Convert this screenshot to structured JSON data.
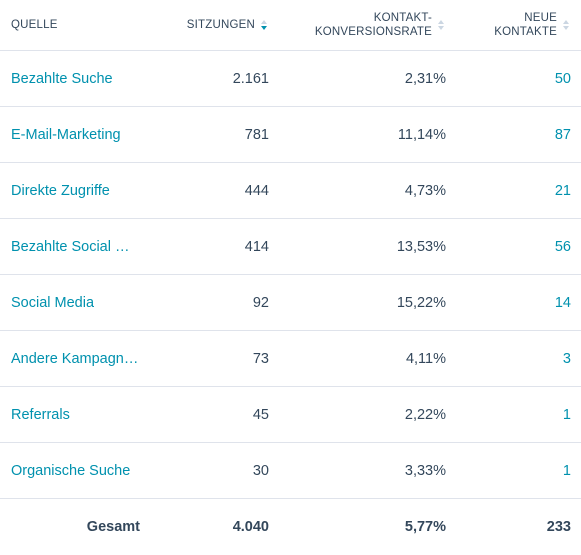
{
  "table": {
    "headers": {
      "source": "QUELLE",
      "sessions": "SITZUNGEN",
      "rate_line1": "KONTAKT-",
      "rate_line2": "KONVERSIONSRATE",
      "contacts_line1": "NEUE",
      "contacts_line2": "KONTAKTE"
    },
    "sort": {
      "active_column": "sessions",
      "direction": "descending"
    },
    "rows": [
      {
        "source": "Bezahlte Suche",
        "sessions": "2.161",
        "rate": "2,31%",
        "contacts": "50"
      },
      {
        "source": "E-Mail-Marketing",
        "sessions": "781",
        "rate": "11,14%",
        "contacts": "87"
      },
      {
        "source": "Direkte Zugriffe",
        "sessions": "444",
        "rate": "4,73%",
        "contacts": "21"
      },
      {
        "source": "Bezahlte Social M…",
        "sessions": "414",
        "rate": "13,53%",
        "contacts": "56"
      },
      {
        "source": "Social Media",
        "sessions": "92",
        "rate": "15,22%",
        "contacts": "14"
      },
      {
        "source": "Andere Kampagn…",
        "sessions": "73",
        "rate": "4,11%",
        "contacts": "3"
      },
      {
        "source": "Referrals",
        "sessions": "45",
        "rate": "2,22%",
        "contacts": "1"
      },
      {
        "source": "Organische Suche",
        "sessions": "30",
        "rate": "3,33%",
        "contacts": "1"
      }
    ],
    "total": {
      "label": "Gesamt",
      "sessions": "4.040",
      "rate": "5,77%",
      "contacts": "233"
    }
  },
  "colors": {
    "link": "#0091ae",
    "text": "#33475b",
    "border": "#dfe3eb",
    "sort_inactive": "#cbd6e2"
  }
}
